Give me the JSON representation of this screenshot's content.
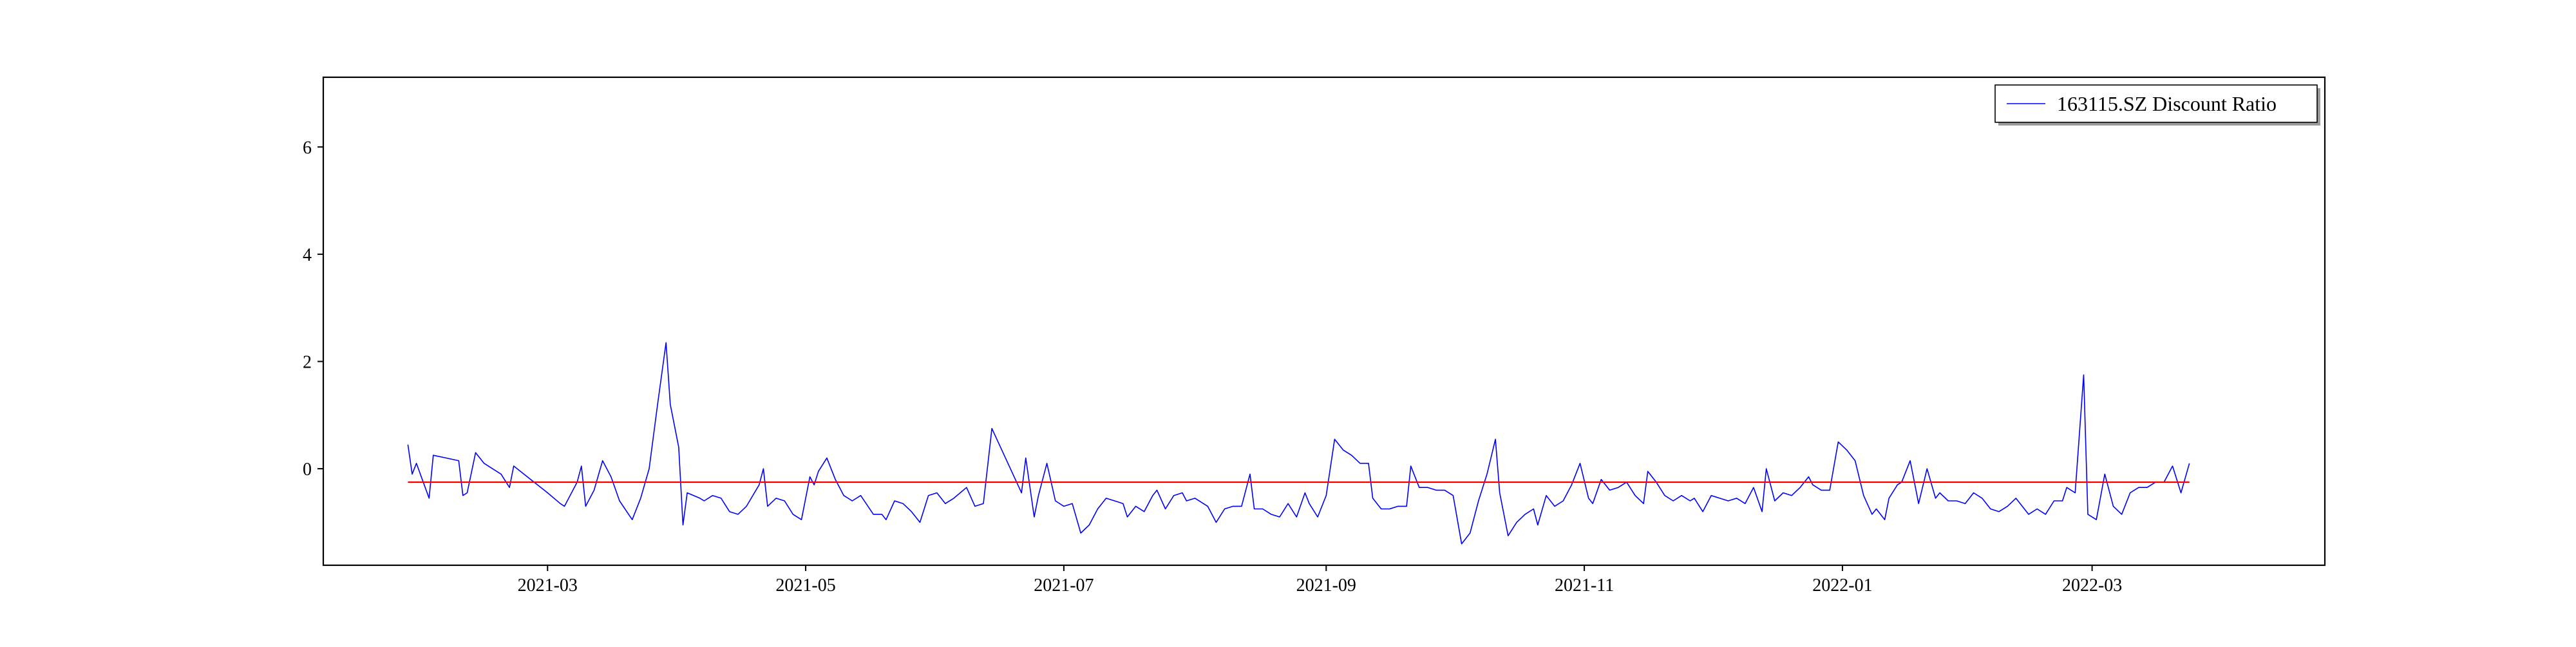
{
  "chart_data": {
    "type": "line",
    "title": "",
    "xlabel": "",
    "ylabel": "",
    "xlim": [
      "2021-01-07",
      "2022-04-25"
    ],
    "ylim": [
      -1.8,
      7.3
    ],
    "x_ticks": [
      "2021-03",
      "2021-05",
      "2021-07",
      "2021-09",
      "2021-11",
      "2022-01",
      "2022-03"
    ],
    "y_ticks": [
      0,
      2,
      4,
      6
    ],
    "grid": false,
    "legend": {
      "position": "top-right",
      "entries": [
        "163115.SZ Discount Ratio"
      ]
    },
    "reference_line": {
      "y": -0.25,
      "color": "#ff0000"
    },
    "series": [
      {
        "name": "163115.SZ Discount Ratio",
        "color": "#0000ff",
        "points": [
          [
            "2021-01-27",
            0.45
          ],
          [
            "2021-01-28",
            -0.1
          ],
          [
            "2021-01-29",
            0.1
          ],
          [
            "2021-02-01",
            -0.55
          ],
          [
            "2021-02-02",
            0.25
          ],
          [
            "2021-02-05",
            0.2
          ],
          [
            "2021-02-08",
            0.15
          ],
          [
            "2021-02-09",
            -0.5
          ],
          [
            "2021-02-10",
            -0.45
          ],
          [
            "2021-02-12",
            0.3
          ],
          [
            "2021-02-14",
            0.1
          ],
          [
            "2021-02-16",
            0.0
          ],
          [
            "2021-02-18",
            -0.1
          ],
          [
            "2021-02-20",
            -0.35
          ],
          [
            "2021-02-21",
            0.05
          ],
          [
            "2021-02-25",
            -0.2
          ],
          [
            "2021-03-01",
            -0.45
          ],
          [
            "2021-03-04",
            -0.65
          ],
          [
            "2021-03-05",
            -0.7
          ],
          [
            "2021-03-08",
            -0.25
          ],
          [
            "2021-03-09",
            0.05
          ],
          [
            "2021-03-10",
            -0.7
          ],
          [
            "2021-03-12",
            -0.4
          ],
          [
            "2021-03-14",
            0.15
          ],
          [
            "2021-03-16",
            -0.15
          ],
          [
            "2021-03-18",
            -0.6
          ],
          [
            "2021-03-21",
            -0.95
          ],
          [
            "2021-03-23",
            -0.55
          ],
          [
            "2021-03-25",
            0.0
          ],
          [
            "2021-03-27",
            1.2
          ],
          [
            "2021-03-29",
            2.35
          ],
          [
            "2021-03-30",
            1.2
          ],
          [
            "2021-04-01",
            0.4
          ],
          [
            "2021-04-02",
            -1.05
          ],
          [
            "2021-04-03",
            -0.45
          ],
          [
            "2021-04-06",
            -0.55
          ],
          [
            "2021-04-07",
            -0.6
          ],
          [
            "2021-04-09",
            -0.5
          ],
          [
            "2021-04-11",
            -0.55
          ],
          [
            "2021-04-13",
            -0.8
          ],
          [
            "2021-04-15",
            -0.85
          ],
          [
            "2021-04-17",
            -0.7
          ],
          [
            "2021-04-20",
            -0.3
          ],
          [
            "2021-04-21",
            0.0
          ],
          [
            "2021-04-22",
            -0.7
          ],
          [
            "2021-04-24",
            -0.55
          ],
          [
            "2021-04-26",
            -0.6
          ],
          [
            "2021-04-28",
            -0.85
          ],
          [
            "2021-04-30",
            -0.95
          ],
          [
            "2021-05-02",
            -0.15
          ],
          [
            "2021-05-03",
            -0.3
          ],
          [
            "2021-05-04",
            -0.05
          ],
          [
            "2021-05-06",
            0.2
          ],
          [
            "2021-05-08",
            -0.2
          ],
          [
            "2021-05-10",
            -0.5
          ],
          [
            "2021-05-12",
            -0.6
          ],
          [
            "2021-05-14",
            -0.5
          ],
          [
            "2021-05-17",
            -0.85
          ],
          [
            "2021-05-19",
            -0.85
          ],
          [
            "2021-05-20",
            -0.95
          ],
          [
            "2021-05-22",
            -0.6
          ],
          [
            "2021-05-24",
            -0.65
          ],
          [
            "2021-05-26",
            -0.8
          ],
          [
            "2021-05-28",
            -1.0
          ],
          [
            "2021-05-30",
            -0.5
          ],
          [
            "2021-06-01",
            -0.45
          ],
          [
            "2021-06-03",
            -0.65
          ],
          [
            "2021-06-05",
            -0.55
          ],
          [
            "2021-06-08",
            -0.35
          ],
          [
            "2021-06-10",
            -0.7
          ],
          [
            "2021-06-12",
            -0.65
          ],
          [
            "2021-06-14",
            0.75
          ],
          [
            "2021-06-21",
            -0.45
          ],
          [
            "2021-06-22",
            0.2
          ],
          [
            "2021-06-24",
            -0.9
          ],
          [
            "2021-06-25",
            -0.5
          ],
          [
            "2021-06-27",
            0.1
          ],
          [
            "2021-06-29",
            -0.6
          ],
          [
            "2021-07-01",
            -0.7
          ],
          [
            "2021-07-03",
            -0.65
          ],
          [
            "2021-07-05",
            -1.2
          ],
          [
            "2021-07-07",
            -1.05
          ],
          [
            "2021-07-09",
            -0.75
          ],
          [
            "2021-07-11",
            -0.55
          ],
          [
            "2021-07-13",
            -0.6
          ],
          [
            "2021-07-15",
            -0.65
          ],
          [
            "2021-07-16",
            -0.9
          ],
          [
            "2021-07-18",
            -0.7
          ],
          [
            "2021-07-20",
            -0.8
          ],
          [
            "2021-07-22",
            -0.5
          ],
          [
            "2021-07-23",
            -0.4
          ],
          [
            "2021-07-25",
            -0.75
          ],
          [
            "2021-07-27",
            -0.5
          ],
          [
            "2021-07-29",
            -0.45
          ],
          [
            "2021-07-30",
            -0.6
          ],
          [
            "2021-08-01",
            -0.55
          ],
          [
            "2021-08-04",
            -0.7
          ],
          [
            "2021-08-06",
            -1.0
          ],
          [
            "2021-08-08",
            -0.75
          ],
          [
            "2021-08-10",
            -0.7
          ],
          [
            "2021-08-12",
            -0.7
          ],
          [
            "2021-08-14",
            -0.1
          ],
          [
            "2021-08-15",
            -0.75
          ],
          [
            "2021-08-17",
            -0.75
          ],
          [
            "2021-08-19",
            -0.85
          ],
          [
            "2021-08-21",
            -0.9
          ],
          [
            "2021-08-23",
            -0.65
          ],
          [
            "2021-08-25",
            -0.9
          ],
          [
            "2021-08-27",
            -0.45
          ],
          [
            "2021-08-28",
            -0.65
          ],
          [
            "2021-08-30",
            -0.9
          ],
          [
            "2021-09-01",
            -0.5
          ],
          [
            "2021-09-03",
            0.55
          ],
          [
            "2021-09-05",
            0.35
          ],
          [
            "2021-09-07",
            0.25
          ],
          [
            "2021-09-09",
            0.1
          ],
          [
            "2021-09-11",
            0.1
          ],
          [
            "2021-09-12",
            -0.55
          ],
          [
            "2021-09-14",
            -0.75
          ],
          [
            "2021-09-16",
            -0.75
          ],
          [
            "2021-09-18",
            -0.7
          ],
          [
            "2021-09-20",
            -0.7
          ],
          [
            "2021-09-21",
            0.05
          ],
          [
            "2021-09-23",
            -0.35
          ],
          [
            "2021-09-25",
            -0.35
          ],
          [
            "2021-09-27",
            -0.4
          ],
          [
            "2021-09-29",
            -0.4
          ],
          [
            "2021-10-01",
            -0.5
          ],
          [
            "2021-10-03",
            -1.4
          ],
          [
            "2021-10-05",
            -1.2
          ],
          [
            "2021-10-07",
            -0.6
          ],
          [
            "2021-10-09",
            -0.1
          ],
          [
            "2021-10-11",
            0.55
          ],
          [
            "2021-10-12",
            -0.45
          ],
          [
            "2021-10-14",
            -1.25
          ],
          [
            "2021-10-16",
            -1.0
          ],
          [
            "2021-10-18",
            -0.85
          ],
          [
            "2021-10-20",
            -0.75
          ],
          [
            "2021-10-21",
            -1.05
          ],
          [
            "2021-10-23",
            -0.5
          ],
          [
            "2021-10-25",
            -0.7
          ],
          [
            "2021-10-27",
            -0.6
          ],
          [
            "2021-10-29",
            -0.3
          ],
          [
            "2021-10-31",
            0.1
          ],
          [
            "2021-11-02",
            -0.55
          ],
          [
            "2021-11-03",
            -0.65
          ],
          [
            "2021-11-05",
            -0.2
          ],
          [
            "2021-11-07",
            -0.4
          ],
          [
            "2021-11-09",
            -0.35
          ],
          [
            "2021-11-11",
            -0.25
          ],
          [
            "2021-11-13",
            -0.5
          ],
          [
            "2021-11-15",
            -0.65
          ],
          [
            "2021-11-16",
            -0.05
          ],
          [
            "2021-11-18",
            -0.25
          ],
          [
            "2021-11-20",
            -0.5
          ],
          [
            "2021-11-22",
            -0.6
          ],
          [
            "2021-11-24",
            -0.5
          ],
          [
            "2021-11-26",
            -0.6
          ],
          [
            "2021-11-27",
            -0.55
          ],
          [
            "2021-11-29",
            -0.8
          ],
          [
            "2021-12-01",
            -0.5
          ],
          [
            "2021-12-03",
            -0.55
          ],
          [
            "2021-12-05",
            -0.6
          ],
          [
            "2021-12-07",
            -0.55
          ],
          [
            "2021-12-09",
            -0.65
          ],
          [
            "2021-12-11",
            -0.35
          ],
          [
            "2021-12-13",
            -0.8
          ],
          [
            "2021-12-14",
            0.0
          ],
          [
            "2021-12-16",
            -0.6
          ],
          [
            "2021-12-18",
            -0.45
          ],
          [
            "2021-12-20",
            -0.5
          ],
          [
            "2021-12-22",
            -0.35
          ],
          [
            "2021-12-24",
            -0.15
          ],
          [
            "2021-12-25",
            -0.3
          ],
          [
            "2021-12-27",
            -0.4
          ],
          [
            "2021-12-29",
            -0.4
          ],
          [
            "2021-12-31",
            0.5
          ],
          [
            "2022-01-02",
            0.35
          ],
          [
            "2022-01-04",
            0.15
          ],
          [
            "2022-01-06",
            -0.5
          ],
          [
            "2022-01-08",
            -0.85
          ],
          [
            "2022-01-09",
            -0.75
          ],
          [
            "2022-01-11",
            -0.95
          ],
          [
            "2022-01-12",
            -0.55
          ],
          [
            "2022-01-14",
            -0.3
          ],
          [
            "2022-01-15",
            -0.25
          ],
          [
            "2022-01-17",
            0.15
          ],
          [
            "2022-01-19",
            -0.65
          ],
          [
            "2022-01-21",
            0.0
          ],
          [
            "2022-01-23",
            -0.55
          ],
          [
            "2022-01-24",
            -0.45
          ],
          [
            "2022-01-26",
            -0.6
          ],
          [
            "2022-01-28",
            -0.6
          ],
          [
            "2022-01-30",
            -0.65
          ],
          [
            "2022-02-01",
            -0.45
          ],
          [
            "2022-02-03",
            -0.55
          ],
          [
            "2022-02-05",
            -0.75
          ],
          [
            "2022-02-07",
            -0.8
          ],
          [
            "2022-02-09",
            -0.7
          ],
          [
            "2022-02-11",
            -0.55
          ],
          [
            "2022-02-12",
            -0.65
          ],
          [
            "2022-02-14",
            -0.85
          ],
          [
            "2022-02-16",
            -0.75
          ],
          [
            "2022-02-18",
            -0.85
          ],
          [
            "2022-02-20",
            -0.6
          ],
          [
            "2022-02-22",
            -0.6
          ],
          [
            "2022-02-23",
            -0.35
          ],
          [
            "2022-02-25",
            -0.45
          ],
          [
            "2022-02-27",
            1.75
          ],
          [
            "2022-02-28",
            -0.85
          ],
          [
            "2022-03-02",
            -0.95
          ],
          [
            "2022-03-04",
            -0.1
          ],
          [
            "2022-03-06",
            -0.7
          ],
          [
            "2022-03-08",
            -0.85
          ],
          [
            "2022-03-10",
            -0.45
          ],
          [
            "2022-03-12",
            -0.35
          ],
          [
            "2022-03-14",
            -0.35
          ],
          [
            "2022-03-16",
            -0.25
          ],
          [
            "2022-03-18",
            -0.25
          ],
          [
            "2022-03-20",
            0.05
          ],
          [
            "2022-03-22",
            -0.45
          ],
          [
            "2022-03-24",
            0.1
          ]
        ]
      }
    ]
  }
}
